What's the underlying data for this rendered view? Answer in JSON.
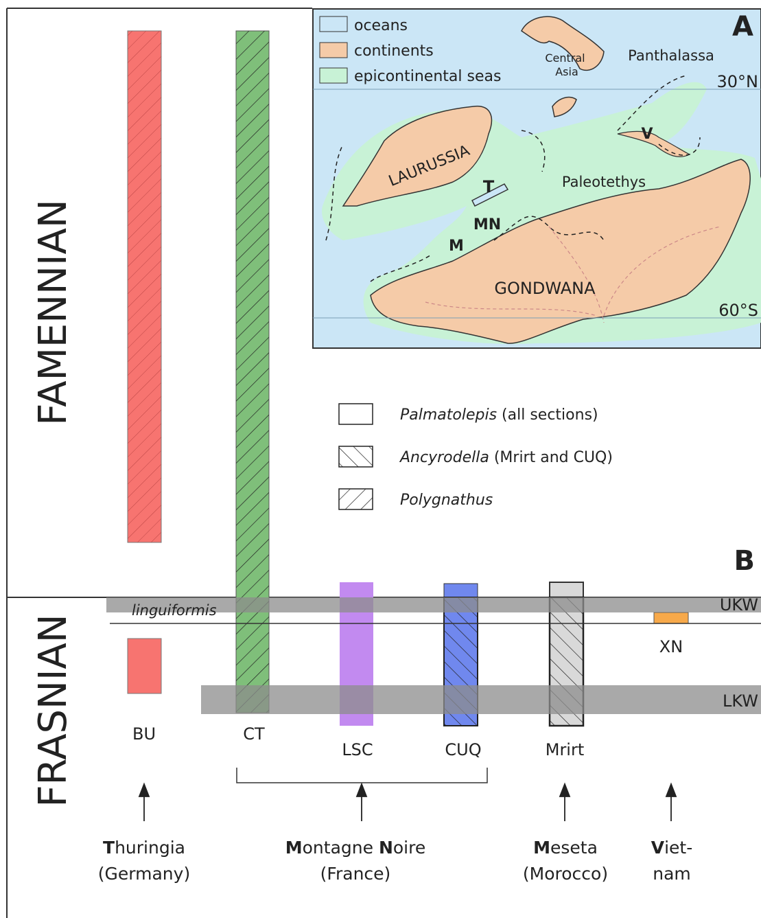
{
  "stages": {
    "upper": "FAMENNIAN",
    "lower": "FRASNIAN"
  },
  "map": {
    "panel": "A",
    "legend": [
      "oceans",
      "continents",
      "epicontinental seas"
    ],
    "labels": {
      "central_asia": [
        "Central",
        "Asia"
      ],
      "panthalassa": "Panthalassa",
      "lat_north": "30°N",
      "laurussia": "LAURUSSIA",
      "t": "T",
      "paleotethys": "Paleotethys",
      "v": "V",
      "mn": "MN",
      "m": "M",
      "gondwana": "GONDWANA",
      "lat_south": "60°S"
    }
  },
  "pattern_legend": [
    {
      "taxon": "Palmatolepis",
      "note": "(all sections)"
    },
    {
      "taxon": "Ancyrodella",
      "note": "(Mrirt and CUQ)"
    },
    {
      "taxon": "Polygnathus"
    }
  ],
  "panel_b": "B",
  "events": {
    "upper": "UKW",
    "lower": "LKW",
    "zone": "linguiformis"
  },
  "sections": [
    "BU",
    "CT",
    "LSC",
    "CUQ",
    "Mrirt",
    "XN"
  ],
  "regions": [
    {
      "name": [
        "T",
        "huringia"
      ],
      "line2": "(Germany)"
    },
    {
      "name": [
        "M",
        "ontagne ",
        "N",
        "oire"
      ],
      "line2": "(France)"
    },
    {
      "name": [
        "M",
        "eseta"
      ],
      "line2": "(Morocco)"
    },
    {
      "name": [
        "V",
        "iet-"
      ],
      "line2": "nam"
    }
  ]
}
